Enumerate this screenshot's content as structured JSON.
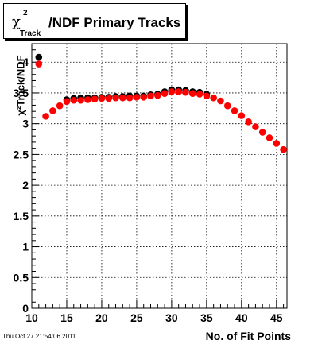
{
  "title": {
    "chi": "χ",
    "sup": "2",
    "sub": "Track",
    "main": "/NDF Primary Tracks"
  },
  "footer": "Thu Oct 27 21:54:06 2011",
  "chart_data": {
    "type": "scatter",
    "title": "χ²Track/NDF Primary Tracks",
    "xlabel": "No. of Fit Points",
    "ylabel": "χ²Track/NDF",
    "xlim": [
      10,
      46.5
    ],
    "ylim": [
      0,
      4.3
    ],
    "grid": true,
    "xticks": [
      10,
      15,
      20,
      25,
      30,
      35,
      40,
      45
    ],
    "yticks": [
      0,
      0.5,
      1,
      1.5,
      2,
      2.5,
      3,
      3.5,
      4
    ],
    "x": [
      11,
      12,
      13,
      14,
      15,
      16,
      17,
      18,
      19,
      20,
      21,
      22,
      23,
      24,
      25,
      26,
      27,
      28,
      29,
      30,
      31,
      32,
      33,
      34,
      35,
      36,
      37,
      38,
      39,
      40,
      41,
      42,
      43,
      44,
      45,
      46
    ],
    "series": [
      {
        "color": "#000000",
        "values": [
          4.08,
          null,
          null,
          null,
          3.39,
          3.41,
          3.42,
          3.42,
          3.42,
          3.43,
          3.43,
          3.44,
          3.44,
          3.45,
          3.45,
          3.45,
          3.47,
          3.48,
          3.52,
          3.55,
          3.55,
          3.54,
          3.52,
          3.51,
          3.48,
          null,
          null,
          null,
          null,
          null,
          null,
          null,
          null,
          null,
          null,
          null
        ]
      },
      {
        "color": "#ff0000",
        "values": [
          3.97,
          3.12,
          3.21,
          3.29,
          3.36,
          3.38,
          3.38,
          3.39,
          3.4,
          3.41,
          3.41,
          3.42,
          3.42,
          3.42,
          3.43,
          3.43,
          3.45,
          3.46,
          3.49,
          3.52,
          3.52,
          3.51,
          3.49,
          3.48,
          3.45,
          3.42,
          3.37,
          3.29,
          3.21,
          3.13,
          3.03,
          2.95,
          2.86,
          2.77,
          2.68,
          2.58
        ]
      }
    ]
  }
}
